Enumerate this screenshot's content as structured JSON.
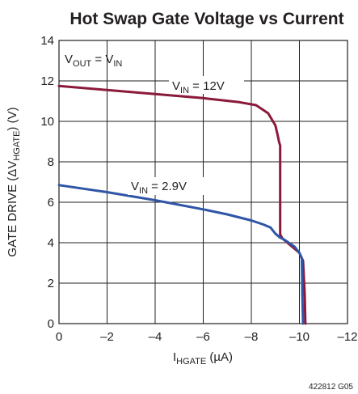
{
  "chart_data": {
    "type": "line",
    "title": "Hot Swap Gate Voltage vs Current",
    "xlabel": {
      "main": "I",
      "sub": "HGATE",
      "unit": " (µA)"
    },
    "ylabel": {
      "main": "GATE DRIVE (ΔV",
      "sub": "HGATE",
      "unit": ") (V)"
    },
    "xlim": [
      0,
      -12
    ],
    "ylim": [
      0,
      14
    ],
    "x_ticks": [
      0,
      -2,
      -4,
      -6,
      -8,
      -10,
      -12
    ],
    "x_tick_labels": [
      "0",
      "–2",
      "–4",
      "–6",
      "–8",
      "–10",
      "–12"
    ],
    "y_ticks": [
      0,
      2,
      4,
      6,
      8,
      10,
      12,
      14
    ],
    "y_tick_labels": [
      "0",
      "2",
      "4",
      "6",
      "8",
      "10",
      "12",
      "14"
    ],
    "grid": true,
    "annotations": {
      "condition": {
        "a": "V",
        "a_sub": "OUT",
        "mid": " = V",
        "b_sub": "IN"
      },
      "series_12v": {
        "main": "V",
        "sub": "IN",
        "rest": " = 12V"
      },
      "series_2v9": {
        "main": "V",
        "sub": "IN",
        "rest": " = 2.9V"
      }
    },
    "series": [
      {
        "name": "VIN = 12V",
        "color": "#8b1a3a",
        "x": [
          0,
          -2,
          -4,
          -6,
          -7.5,
          -8.2,
          -8.7,
          -9.0,
          -9.1,
          -9.15,
          -9.2,
          -9.2,
          -9.25,
          -9.3,
          -9.6,
          -10.0,
          -10.15,
          -10.22,
          -10.25
        ],
        "y": [
          11.75,
          11.55,
          11.35,
          11.15,
          10.95,
          10.8,
          10.4,
          9.8,
          9.3,
          9.0,
          8.8,
          4.4,
          4.3,
          4.2,
          3.9,
          3.5,
          3.1,
          1.5,
          0
        ]
      },
      {
        "name": "VIN = 2.9V",
        "color": "#2f56a6",
        "x": [
          0,
          -2,
          -4,
          -6,
          -7.0,
          -8.0,
          -8.5,
          -8.8,
          -9.0,
          -9.2,
          -9.3,
          -9.5,
          -9.8,
          -10.0,
          -10.1,
          -10.12,
          -10.15
        ],
        "y": [
          6.85,
          6.5,
          6.1,
          5.65,
          5.4,
          5.1,
          4.9,
          4.75,
          4.45,
          4.25,
          4.2,
          4.05,
          3.8,
          3.5,
          3.2,
          1.5,
          0
        ]
      }
    ],
    "footnote": "422812 G05"
  }
}
